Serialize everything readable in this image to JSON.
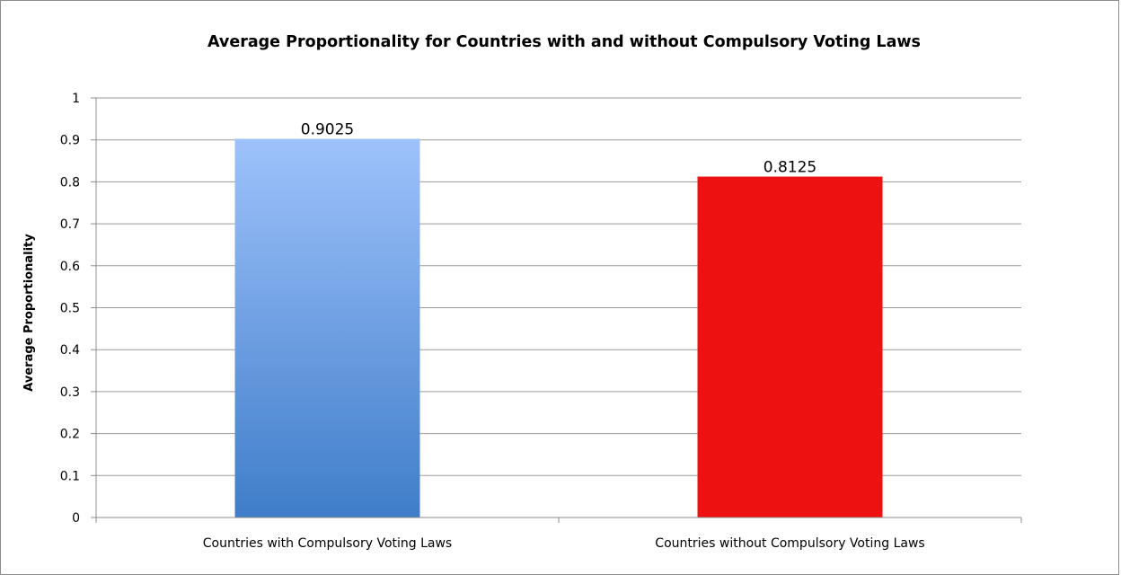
{
  "chart_data": {
    "type": "bar",
    "title": "Average Proportionality for Countries with and without Compulsory Voting Laws",
    "xlabel": "",
    "ylabel": "Average Proportionality",
    "ylim": [
      0,
      1
    ],
    "yticks": [
      "0",
      "0.1",
      "0.2",
      "0.3",
      "0.4",
      "0.5",
      "0.6",
      "0.7",
      "0.8",
      "0.9",
      "1"
    ],
    "categories": [
      "Countries with Compulsory Voting Laws",
      "Countries without Compulsory Voting Laws"
    ],
    "values": [
      0.9025,
      0.8125
    ],
    "data_labels": [
      "0.9025",
      "0.8125"
    ],
    "colors": [
      "#4a86d0",
      "#ee1111"
    ],
    "grid": true,
    "legend": "none"
  }
}
